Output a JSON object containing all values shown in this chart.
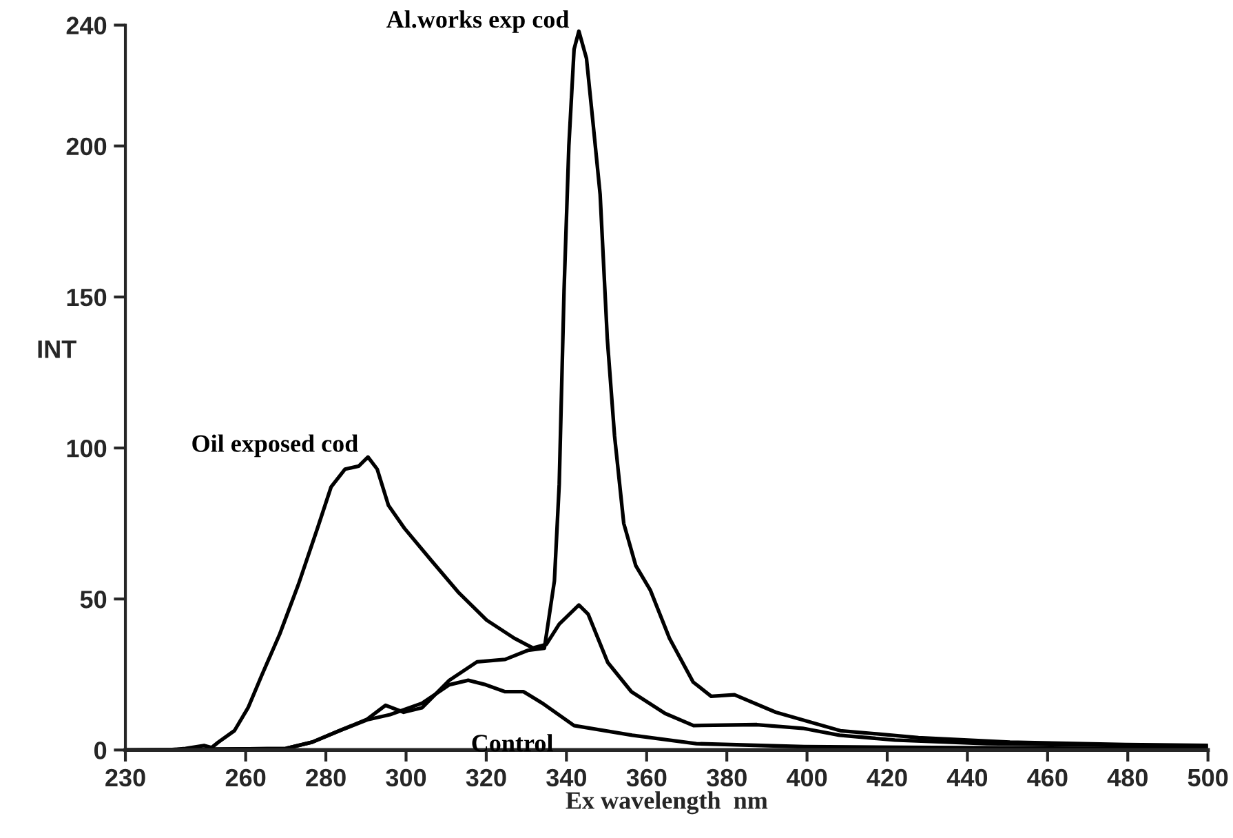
{
  "chart_data": {
    "type": "line",
    "xlabel": "Ex wavelength  nm",
    "ylabel": "INT",
    "xlim": [
      230,
      500
    ],
    "xticks": [
      230,
      260,
      280,
      300,
      320,
      340,
      360,
      380,
      400,
      420,
      440,
      460,
      480,
      500
    ],
    "ylim": [
      0,
      240
    ],
    "yticks": [
      0,
      50,
      100,
      150,
      200,
      240
    ],
    "grid": false,
    "legend": false,
    "series": [
      {
        "name": "Oil exposed cod",
        "color": "#000000",
        "x": [
          230,
          240,
          245,
          249.6,
          251.5,
          253.2,
          257.2,
          260.6,
          264,
          268.5,
          273.2,
          277.9,
          281.3,
          284.8,
          288.2,
          290.5,
          292.8,
          295.6,
          299.6,
          306.4,
          313.2,
          320.1,
          327,
          331.6,
          335,
          338.2,
          343.1,
          345.4,
          350.3,
          356.2,
          364.6,
          371.7,
          387.5,
          398.9,
          408.1,
          421.9,
          444.8,
          500
        ],
        "values": [
          0,
          0,
          0.5,
          1.5,
          0.8,
          2.6,
          6.4,
          14,
          24.7,
          38.4,
          55,
          73.4,
          87.1,
          93,
          94,
          97,
          93,
          81,
          73.4,
          62.6,
          52,
          43,
          37,
          33.8,
          35,
          41.7,
          48,
          45,
          29,
          19.3,
          12.1,
          8.1,
          8.4,
          7.2,
          4.9,
          3.3,
          2.1,
          1.2
        ]
      },
      {
        "name": "Al.works exp cod",
        "color": "#000000",
        "x": [
          230,
          270,
          276.6,
          283.4,
          290.3,
          294.9,
          299.4,
          304,
          310.8,
          317.7,
          324.7,
          330.4,
          334.5,
          337,
          338.2,
          339.4,
          340.6,
          341.9,
          343.1,
          345,
          346.6,
          348.4,
          350.2,
          352,
          354.3,
          357.3,
          360.9,
          365.7,
          371.6,
          376.1,
          381.9,
          392.2,
          408.3,
          427.8,
          450.6,
          479.4,
          500
        ],
        "values": [
          0,
          0.5,
          2.6,
          6.4,
          10.2,
          14.8,
          12.5,
          14,
          23.1,
          29.2,
          30,
          33,
          33.7,
          56,
          88,
          152,
          200,
          232,
          238,
          229,
          208,
          184,
          136,
          104,
          75,
          61,
          53,
          37,
          22.5,
          17.8,
          18.3,
          12.5,
          6.4,
          4.1,
          2.6,
          1.8,
          1.5
        ]
      },
      {
        "name": "Control",
        "color": "#000000",
        "x": [
          230,
          270,
          276.6,
          283.4,
          290.3,
          296,
          304,
          310.8,
          315.5,
          319.9,
          324.7,
          329.3,
          334,
          341.9,
          356.4,
          372.4,
          399.3,
          500
        ],
        "values": [
          0,
          0.5,
          2.6,
          6.4,
          10,
          11.7,
          15.5,
          21.6,
          23.1,
          21.6,
          19.3,
          19.3,
          15.5,
          8.1,
          4.9,
          2.1,
          1.1,
          0.3
        ]
      }
    ]
  }
}
